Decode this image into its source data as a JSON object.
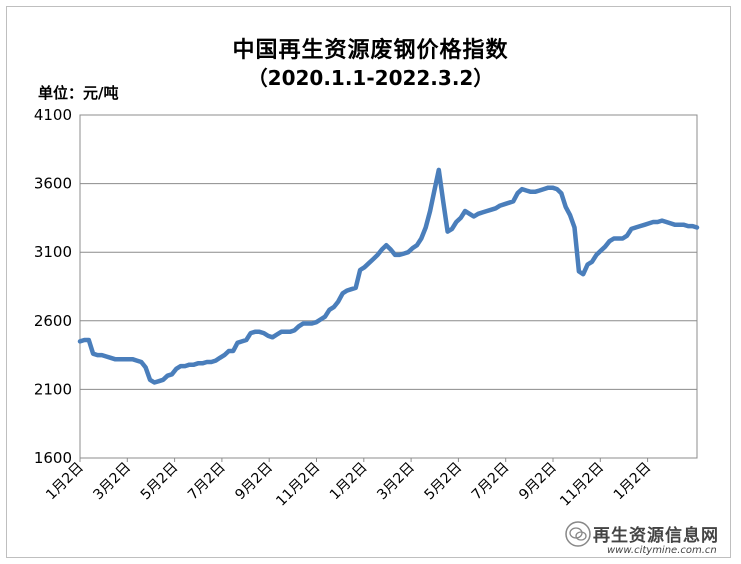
{
  "chart_data": {
    "type": "line",
    "title": "中国再生资源废钢价格指数",
    "subtitle": "（2020.1.1-2022.3.2）",
    "ylabel": "单位：元/吨",
    "xlabel": "",
    "ylim": [
      1600,
      4100
    ],
    "yticks": [
      "1600",
      "2100",
      "2600",
      "3100",
      "3600",
      "4100"
    ],
    "xticks": [
      "1月2日",
      "3月2日",
      "5月2日",
      "7月2日",
      "9月2日",
      "11月2日",
      "1月2日",
      "3月2日",
      "5月2日",
      "7月2日",
      "9月2日",
      "11月2日",
      "1月2日"
    ],
    "grid": true,
    "legend": "none",
    "series_color": "#4a7ebb",
    "series": [
      {
        "x": [
          0,
          1,
          2,
          3,
          4,
          5,
          6,
          7,
          8,
          9,
          10,
          11,
          12,
          13,
          14,
          15,
          16,
          17,
          18,
          19,
          20,
          21,
          22,
          23,
          24,
          25,
          26,
          27,
          28,
          29,
          30,
          31,
          32,
          33,
          34,
          35,
          36,
          37,
          38,
          39,
          40,
          41,
          42,
          43,
          44,
          45,
          46,
          47,
          48,
          49,
          50,
          51,
          52,
          53,
          54,
          55,
          56,
          57,
          58,
          59,
          60,
          61,
          62,
          63,
          64,
          65,
          66,
          67,
          68,
          69,
          70,
          71,
          72,
          73,
          74,
          75,
          76,
          77,
          78,
          79,
          80,
          81,
          82,
          83,
          84,
          85,
          86,
          87,
          88,
          89,
          90,
          91,
          92,
          93,
          94,
          95,
          96,
          97,
          98,
          99,
          100,
          101,
          102,
          103,
          104,
          105,
          106,
          107,
          108,
          109,
          110,
          111,
          112,
          113,
          114,
          115,
          116,
          117,
          118,
          119,
          120,
          121,
          122,
          123,
          124,
          125,
          126,
          127,
          128,
          129,
          130,
          131,
          132,
          133,
          134,
          135,
          136,
          137,
          138,
          139,
          140,
          141
        ],
        "values": [
          2450,
          2460,
          2460,
          2360,
          2350,
          2350,
          2340,
          2330,
          2320,
          2320,
          2320,
          2320,
          2320,
          2310,
          2300,
          2260,
          2170,
          2150,
          2160,
          2170,
          2200,
          2210,
          2250,
          2270,
          2270,
          2280,
          2280,
          2290,
          2290,
          2300,
          2300,
          2310,
          2330,
          2350,
          2380,
          2380,
          2440,
          2450,
          2460,
          2510,
          2520,
          2520,
          2510,
          2490,
          2480,
          2500,
          2520,
          2520,
          2520,
          2530,
          2560,
          2580,
          2580,
          2580,
          2590,
          2610,
          2630,
          2680,
          2700,
          2740,
          2800,
          2820,
          2830,
          2840,
          2970,
          2990,
          3020,
          3050,
          3080,
          3120,
          3150,
          3120,
          3080,
          3080,
          3090,
          3100,
          3130,
          3150,
          3200,
          3280,
          3400,
          3550,
          3700,
          3470,
          3250,
          3270,
          3320,
          3350,
          3400,
          3380,
          3360,
          3380,
          3390,
          3400,
          3410,
          3420,
          3440,
          3450,
          3460,
          3470,
          3530,
          3560,
          3550,
          3540,
          3540,
          3550,
          3560,
          3570,
          3570,
          3560,
          3530,
          3430,
          3370,
          3280,
          2960,
          2940,
          3010,
          3030,
          3080,
          3110,
          3140,
          3180,
          3200,
          3200,
          3200,
          3220,
          3270,
          3280,
          3290,
          3300,
          3310,
          3320,
          3320,
          3330,
          3320,
          3310,
          3300,
          3300,
          3300,
          3290,
          3290,
          3280
        ]
      }
    ]
  },
  "watermark": {
    "text": "再生资源信息网",
    "url": "www.citymine.com.cn"
  }
}
